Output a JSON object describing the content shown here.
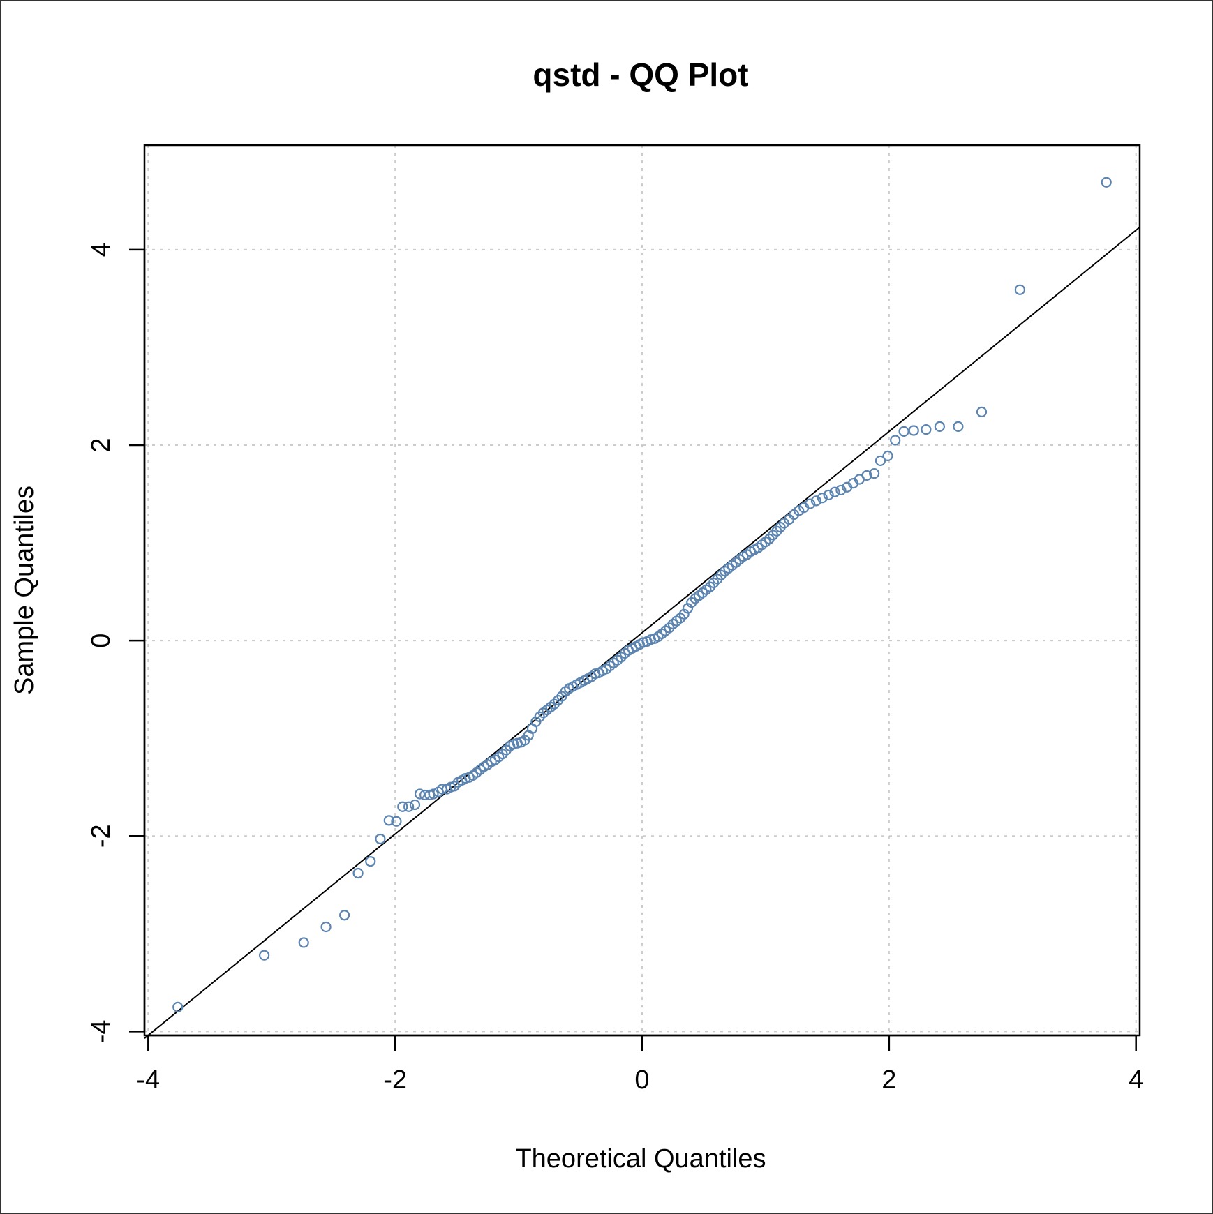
{
  "chart_data": {
    "type": "scatter",
    "title": "qstd - QQ Plot",
    "xlabel": "Theoretical Quantiles",
    "ylabel": "Sample Quantiles",
    "xlim": [
      -4.03,
      4.03
    ],
    "ylim": [
      -4.04,
      5.07
    ],
    "xticks": [
      -4,
      -2,
      0,
      2,
      4
    ],
    "yticks": [
      -4,
      -2,
      0,
      2,
      4
    ],
    "xtick_labels": [
      "-4",
      "-2",
      "0",
      "2",
      "4"
    ],
    "ytick_labels": [
      "-4",
      "-2",
      "0",
      "2",
      "4"
    ],
    "grid": true,
    "grid_style": "dotted",
    "colors": {
      "points": "#5b84b0",
      "reference_line": "#000000",
      "grid": "#cccccc",
      "axes": "#000000"
    },
    "reference_line": {
      "x": [
        -4.03,
        4.03
      ],
      "y": [
        -4.07,
        4.23
      ]
    },
    "series": [
      {
        "points": [
          [
            -3.76,
            -3.75
          ],
          [
            -3.06,
            -3.22
          ],
          [
            -2.74,
            -3.09
          ],
          [
            -2.56,
            -2.93
          ],
          [
            -2.41,
            -2.81
          ],
          [
            -2.3,
            -2.38
          ],
          [
            -2.2,
            -2.26
          ],
          [
            -2.12,
            -2.03
          ],
          [
            -2.05,
            -1.84
          ],
          [
            -1.99,
            -1.85
          ],
          [
            -1.94,
            -1.7
          ],
          [
            -1.89,
            -1.7
          ],
          [
            -1.84,
            -1.68
          ],
          [
            -1.8,
            -1.57
          ],
          [
            -1.76,
            -1.58
          ],
          [
            -1.72,
            -1.58
          ],
          [
            -1.69,
            -1.57
          ],
          [
            -1.65,
            -1.55
          ],
          [
            -1.62,
            -1.52
          ],
          [
            -1.58,
            -1.52
          ],
          [
            -1.55,
            -1.5
          ],
          [
            -1.52,
            -1.49
          ],
          [
            -1.49,
            -1.45
          ],
          [
            -1.46,
            -1.43
          ],
          [
            -1.43,
            -1.41
          ],
          [
            -1.4,
            -1.4
          ],
          [
            -1.37,
            -1.38
          ],
          [
            -1.34,
            -1.35
          ],
          [
            -1.31,
            -1.32
          ],
          [
            -1.28,
            -1.29
          ],
          [
            -1.25,
            -1.27
          ],
          [
            -1.22,
            -1.24
          ],
          [
            -1.19,
            -1.22
          ],
          [
            -1.16,
            -1.19
          ],
          [
            -1.13,
            -1.16
          ],
          [
            -1.1,
            -1.12
          ],
          [
            -1.07,
            -1.08
          ],
          [
            -1.04,
            -1.06
          ],
          [
            -1.01,
            -1.05
          ],
          [
            -0.98,
            -1.04
          ],
          [
            -0.95,
            -1.02
          ],
          [
            -0.92,
            -0.97
          ],
          [
            -0.89,
            -0.9
          ],
          [
            -0.86,
            -0.83
          ],
          [
            -0.83,
            -0.78
          ],
          [
            -0.8,
            -0.74
          ],
          [
            -0.77,
            -0.71
          ],
          [
            -0.74,
            -0.68
          ],
          [
            -0.71,
            -0.65
          ],
          [
            -0.68,
            -0.61
          ],
          [
            -0.65,
            -0.57
          ],
          [
            -0.62,
            -0.52
          ],
          [
            -0.59,
            -0.49
          ],
          [
            -0.56,
            -0.47
          ],
          [
            -0.53,
            -0.45
          ],
          [
            -0.5,
            -0.43
          ],
          [
            -0.47,
            -0.41
          ],
          [
            -0.44,
            -0.39
          ],
          [
            -0.41,
            -0.37
          ],
          [
            -0.38,
            -0.34
          ],
          [
            -0.35,
            -0.33
          ],
          [
            -0.32,
            -0.31
          ],
          [
            -0.29,
            -0.29
          ],
          [
            -0.26,
            -0.26
          ],
          [
            -0.23,
            -0.23
          ],
          [
            -0.2,
            -0.2
          ],
          [
            -0.17,
            -0.17
          ],
          [
            -0.14,
            -0.13
          ],
          [
            -0.11,
            -0.1
          ],
          [
            -0.08,
            -0.08
          ],
          [
            -0.05,
            -0.06
          ],
          [
            -0.02,
            -0.04
          ],
          [
            0.01,
            -0.02
          ],
          [
            0.04,
            -0.01
          ],
          [
            0.07,
            0.01
          ],
          [
            0.1,
            0.02
          ],
          [
            0.13,
            0.04
          ],
          [
            0.16,
            0.07
          ],
          [
            0.19,
            0.1
          ],
          [
            0.22,
            0.13
          ],
          [
            0.25,
            0.17
          ],
          [
            0.28,
            0.2
          ],
          [
            0.31,
            0.23
          ],
          [
            0.34,
            0.27
          ],
          [
            0.37,
            0.33
          ],
          [
            0.4,
            0.39
          ],
          [
            0.43,
            0.43
          ],
          [
            0.46,
            0.46
          ],
          [
            0.49,
            0.49
          ],
          [
            0.52,
            0.52
          ],
          [
            0.55,
            0.55
          ],
          [
            0.58,
            0.59
          ],
          [
            0.61,
            0.63
          ],
          [
            0.64,
            0.67
          ],
          [
            0.67,
            0.71
          ],
          [
            0.7,
            0.74
          ],
          [
            0.73,
            0.77
          ],
          [
            0.76,
            0.8
          ],
          [
            0.79,
            0.83
          ],
          [
            0.82,
            0.86
          ],
          [
            0.85,
            0.88
          ],
          [
            0.88,
            0.91
          ],
          [
            0.91,
            0.93
          ],
          [
            0.94,
            0.95
          ],
          [
            0.97,
            0.98
          ],
          [
            1.0,
            1.01
          ],
          [
            1.03,
            1.04
          ],
          [
            1.06,
            1.08
          ],
          [
            1.09,
            1.12
          ],
          [
            1.12,
            1.16
          ],
          [
            1.15,
            1.2
          ],
          [
            1.19,
            1.24
          ],
          [
            1.23,
            1.29
          ],
          [
            1.27,
            1.33
          ],
          [
            1.31,
            1.36
          ],
          [
            1.36,
            1.4
          ],
          [
            1.41,
            1.43
          ],
          [
            1.46,
            1.46
          ],
          [
            1.51,
            1.49
          ],
          [
            1.56,
            1.52
          ],
          [
            1.61,
            1.54
          ],
          [
            1.66,
            1.57
          ],
          [
            1.71,
            1.61
          ],
          [
            1.76,
            1.65
          ],
          [
            1.82,
            1.69
          ],
          [
            1.88,
            1.71
          ],
          [
            1.93,
            1.84
          ],
          [
            1.99,
            1.89
          ],
          [
            2.05,
            2.05
          ],
          [
            2.12,
            2.14
          ],
          [
            2.2,
            2.15
          ],
          [
            2.3,
            2.16
          ],
          [
            2.41,
            2.19
          ],
          [
            2.56,
            2.19
          ],
          [
            2.75,
            2.34
          ],
          [
            3.06,
            3.59
          ],
          [
            3.76,
            4.69
          ]
        ]
      }
    ]
  }
}
